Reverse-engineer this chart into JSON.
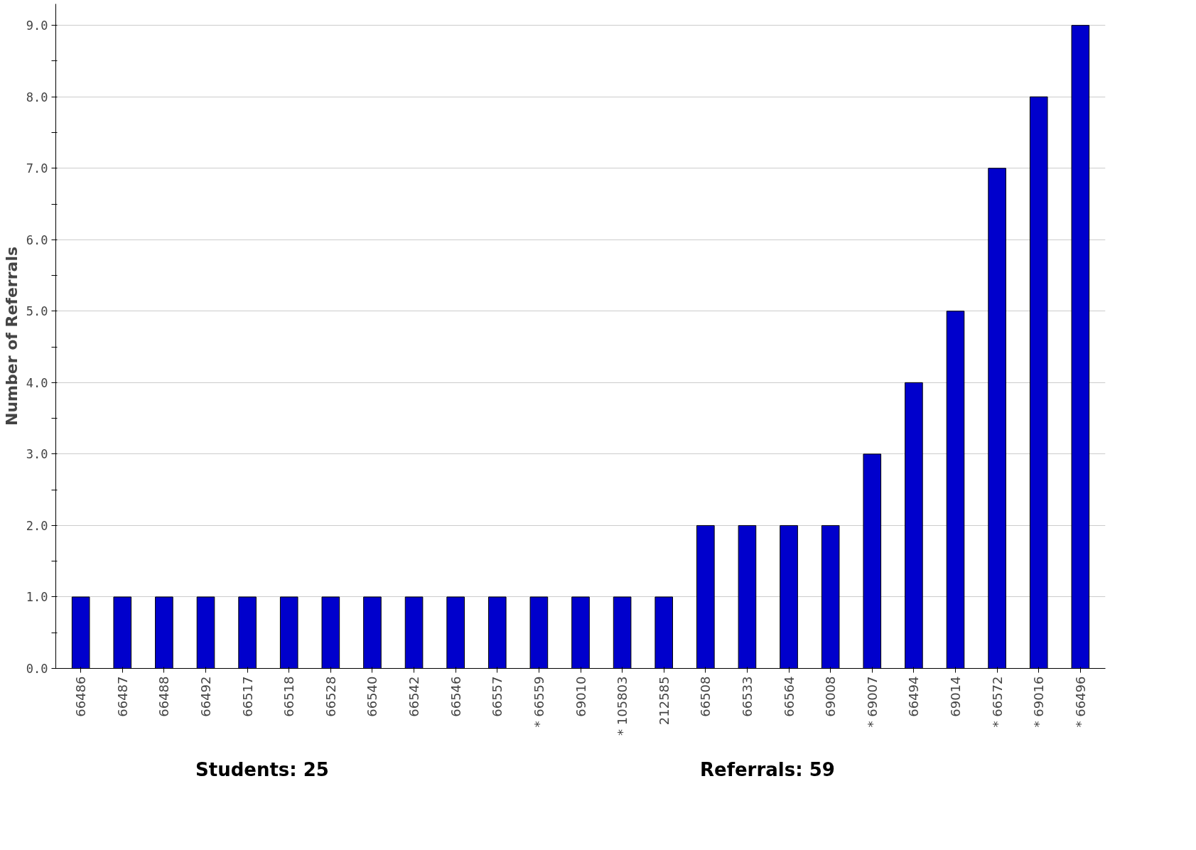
{
  "chart_data": {
    "type": "bar",
    "ylabel": "Number of Referrals",
    "categories": [
      "66486",
      "66487",
      "66488",
      "66492",
      "66517",
      "66518",
      "66528",
      "66540",
      "66542",
      "66546",
      "66557",
      "* 66559",
      "69010",
      "* 105803",
      "212585",
      "66508",
      "66533",
      "66564",
      "69008",
      "* 69007",
      "66494",
      "69014",
      "* 66572",
      "* 69016",
      "* 66496"
    ],
    "values": [
      1,
      1,
      1,
      1,
      1,
      1,
      1,
      1,
      1,
      1,
      1,
      1,
      1,
      1,
      1,
      2,
      2,
      2,
      2,
      3,
      4,
      5,
      7,
      8,
      9
    ],
    "color": "#0000cc",
    "ylim": [
      0,
      9.3
    ],
    "yticks": [
      {
        "value": 0,
        "label": "0.0"
      },
      {
        "value": 0.5,
        "label": null
      },
      {
        "value": 1,
        "label": "1.0"
      },
      {
        "value": 1.5,
        "label": null
      },
      {
        "value": 2,
        "label": "2.0"
      },
      {
        "value": 2.5,
        "label": null
      },
      {
        "value": 3,
        "label": "3.0"
      },
      {
        "value": 3.5,
        "label": null
      },
      {
        "value": 4,
        "label": "4.0"
      },
      {
        "value": 4.5,
        "label": null
      },
      {
        "value": 5,
        "label": "5.0"
      },
      {
        "value": 5.5,
        "label": null
      },
      {
        "value": 6,
        "label": "6.0"
      },
      {
        "value": 6.5,
        "label": null
      },
      {
        "value": 7,
        "label": "7.0"
      },
      {
        "value": 7.5,
        "label": null
      },
      {
        "value": 8,
        "label": "8.0"
      },
      {
        "value": 8.5,
        "label": null
      },
      {
        "value": 9,
        "label": "9.0"
      }
    ],
    "grid": "y",
    "annotations": [
      "Students: 25",
      "Referrals: 59"
    ]
  }
}
